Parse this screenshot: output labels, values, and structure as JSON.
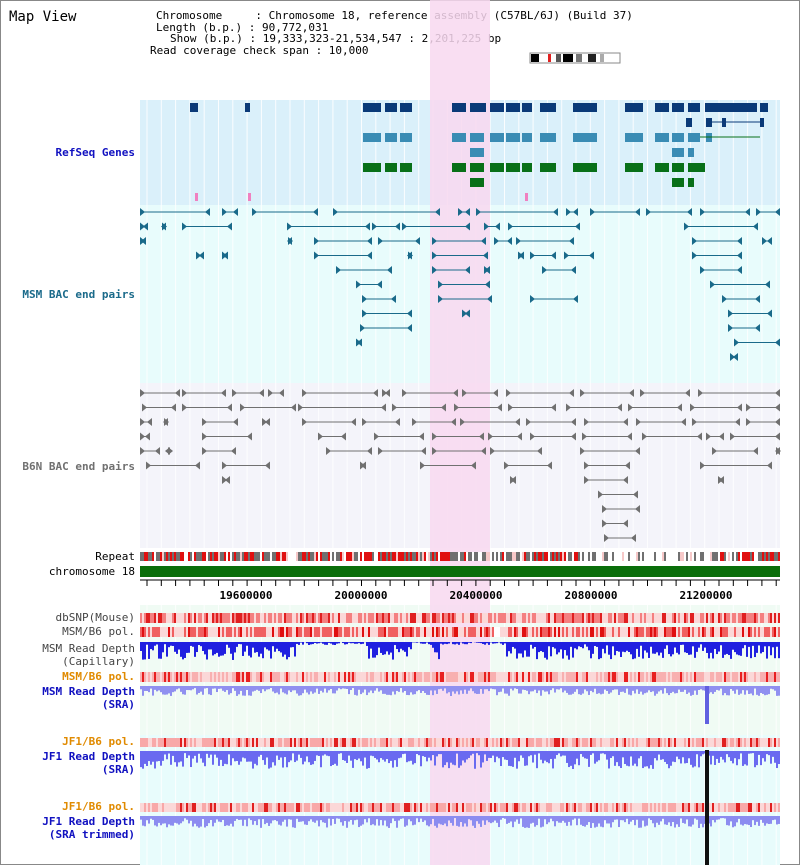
{
  "page_title": "Map View",
  "info": {
    "line1": "Chromosome     : Chromosome 18, reference assembly (C57BL/6J) (Build 37)",
    "line2": "Length (b.p.) : 90,772,031",
    "line3": "Show (b.p.) : 19,333,323-21,534,547 : 2,201,225 bp",
    "line4": "Read coverage check span : 10,000"
  },
  "tracks": {
    "refseq": "RefSeq Genes",
    "msm_bac": "MSM BAC end pairs",
    "b6n_bac": "B6N BAC end pairs",
    "repeat": "Repeat",
    "chromosome": "chromosome 18",
    "dbsnp": "dbSNP(Mouse)",
    "msm_b6_pol_1": "MSM/B6 pol.",
    "msm_depth_cap_1": "MSM Read Depth",
    "msm_depth_cap_2": "(Capillary)",
    "msm_b6_pol_2": "MSM/B6 pol.",
    "msm_depth_sra_1": "MSM Read Depth",
    "msm_depth_sra_2": "(SRA)",
    "jf1_b6_pol_1": "JF1/B6 pol.",
    "jf1_depth_sra_1": "JF1 Read Depth",
    "jf1_depth_sra_2": "(SRA)",
    "jf1_b6_pol_2": "JF1/B6 pol.",
    "jf1_depth_trim_1": "JF1 Read Depth",
    "jf1_depth_trim_2": "(SRA trimmed)"
  },
  "axis": {
    "ticks": [
      "19600000",
      "20000000",
      "20400000",
      "20800000",
      "21200000"
    ]
  },
  "colors": {
    "refseq_bg": "#daf0fa",
    "msm_bg": "#e8fcfc",
    "b6n_bg": "#f4f4fa",
    "highlight": "#f8d8f0",
    "refseq_dark": "#0a3a78",
    "refseq_mid": "#3a8cb4",
    "refseq_green": "#087018",
    "msm_line": "#1a6a8a",
    "b6n_line": "#707070",
    "msm_label": "#1a6a8a",
    "orange_label": "#e08a00",
    "blue_label": "#1010c0",
    "chrom_green": "#0a6e0a"
  }
}
